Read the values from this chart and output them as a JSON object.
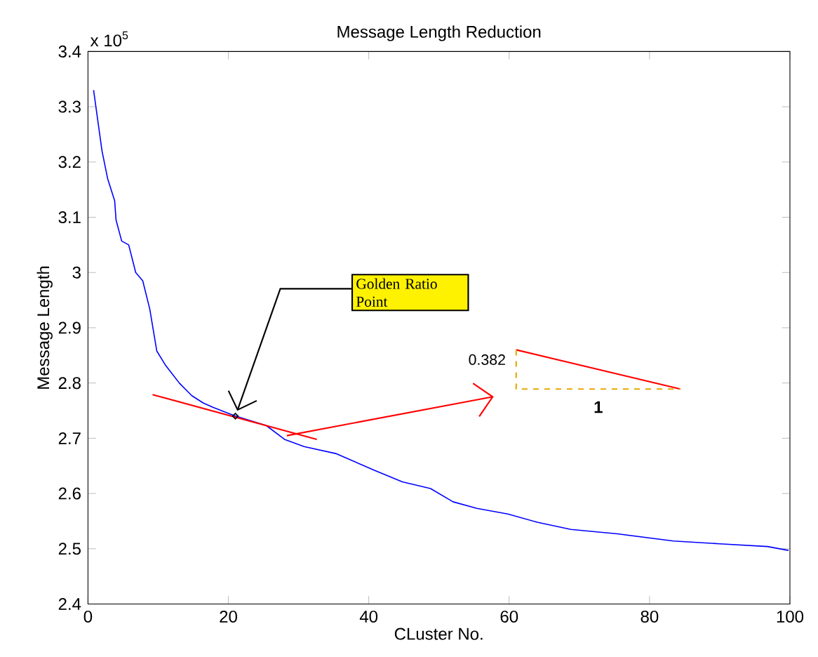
{
  "chart_data": {
    "type": "line",
    "title": "Message Length Reduction",
    "xlabel": "CLuster No.",
    "ylabel": "Message Length",
    "xlim": [
      0,
      100
    ],
    "ylim": [
      2.4,
      3.4
    ],
    "xticks": [
      0,
      20,
      40,
      60,
      80,
      100
    ],
    "yticks": [
      2.4,
      2.5,
      2.6,
      2.7,
      2.8,
      2.9,
      3,
      3.1,
      3.2,
      3.3,
      3.4
    ],
    "grid": false,
    "marker": "none",
    "annotations": [
      "x 10$^{5}$",
      {
        "text": "Golden Ratio Point",
        "x": 21,
        "y": 2.74
      },
      "0.382",
      "1"
    ],
    "series": [
      {
        "color": "#0000ff",
        "x": [
          0.8,
          2,
          2.8,
          3.8,
          4,
          4.8,
          5.8,
          6.8,
          7.8,
          8.8,
          9.8,
          11,
          13,
          14.8,
          16.4,
          17.8,
          20.8,
          25.4,
          28,
          30.8,
          35.4,
          40.8,
          44.8,
          48.8,
          52,
          55.4,
          59.8,
          64,
          68.8,
          75.4,
          83.4,
          90,
          96.8,
          99.8
        ],
        "values": [
          3.33,
          3.22,
          3.17,
          3.13,
          3.095,
          3.057,
          3.05,
          3.0,
          2.985,
          2.934,
          2.858,
          2.833,
          2.8,
          2.777,
          2.764,
          2.756,
          2.741,
          2.723,
          2.698,
          2.685,
          2.672,
          2.642,
          2.621,
          2.609,
          2.585,
          2.573,
          2.563,
          2.548,
          2.535,
          2.527,
          2.514,
          2.509,
          2.504,
          2.497
        ]
      },
      {
        "color": "#ff0000",
        "x": [
          9.2,
          32.6
        ],
        "values": [
          2.779,
          2.698
        ]
      },
      {
        "color": "#ff0000",
        "x": [
          61,
          84.4
        ],
        "values": [
          2.86,
          2.789
        ]
      },
      {
        "color": "#e6a800",
        "line_style": "dashed",
        "x": [
          61,
          61,
          84.4
        ],
        "values": [
          2.86,
          2.789,
          2.789
        ]
      }
    ]
  }
}
